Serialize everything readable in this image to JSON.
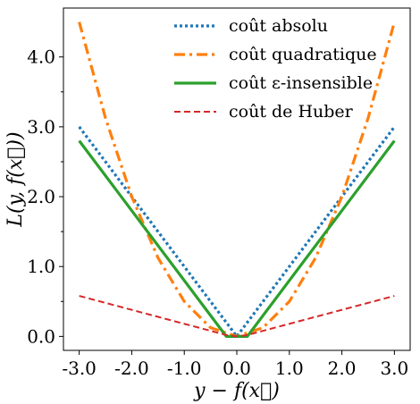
{
  "chart_data": {
    "type": "line",
    "xlabel": "y − f(x⃗)",
    "ylabel": "L(y, f(x⃗))",
    "xlim": [
      -3.3,
      3.3
    ],
    "ylim": [
      -0.2,
      4.7
    ],
    "x_ticks": [
      -3.0,
      -2.0,
      -1.0,
      0.0,
      1.0,
      2.0,
      3.0
    ],
    "x_tick_labels": [
      "-3.0",
      "-2.0",
      "-1.0",
      "0.0",
      "1.0",
      "2.0",
      "3.0"
    ],
    "y_ticks": [
      0.0,
      1.0,
      2.0,
      3.0,
      4.0
    ],
    "y_tick_labels": [
      "0.0",
      "1.0",
      "2.0",
      "3.0",
      "4.0"
    ],
    "legend_position": "top-right",
    "grid": false,
    "series": [
      {
        "name": "coût absolu",
        "color": "#1f77b4",
        "dash": "dotted",
        "x": [
          -3.0,
          -2.0,
          -1.0,
          0.0,
          1.0,
          2.0,
          3.0
        ],
        "y": [
          3.0,
          2.0,
          1.0,
          0.0,
          1.0,
          2.0,
          3.0
        ]
      },
      {
        "name": "coût quadratique",
        "color": "#ff7f0e",
        "dash": "dashdot",
        "x": [
          -3.0,
          -2.5,
          -2.0,
          -1.5,
          -1.0,
          -0.5,
          0.0,
          0.5,
          1.0,
          1.5,
          2.0,
          2.5,
          3.0
        ],
        "y": [
          4.5,
          3.125,
          2.0,
          1.125,
          0.5,
          0.125,
          0.0,
          0.125,
          0.5,
          1.125,
          2.0,
          3.125,
          4.5
        ]
      },
      {
        "name": "coût ε-insensible",
        "color": "#2ca02c",
        "dash": "solid",
        "x": [
          -3.0,
          -0.2,
          0.2,
          3.0
        ],
        "y": [
          2.8,
          0.0,
          0.0,
          2.8
        ]
      },
      {
        "name": "coût de Huber",
        "color": "#d62728",
        "dash": "dashed",
        "x": [
          -3.0,
          -0.2,
          0.0,
          0.2,
          3.0
        ],
        "y": [
          0.58,
          0.02,
          0.0,
          0.02,
          0.58
        ]
      }
    ]
  }
}
